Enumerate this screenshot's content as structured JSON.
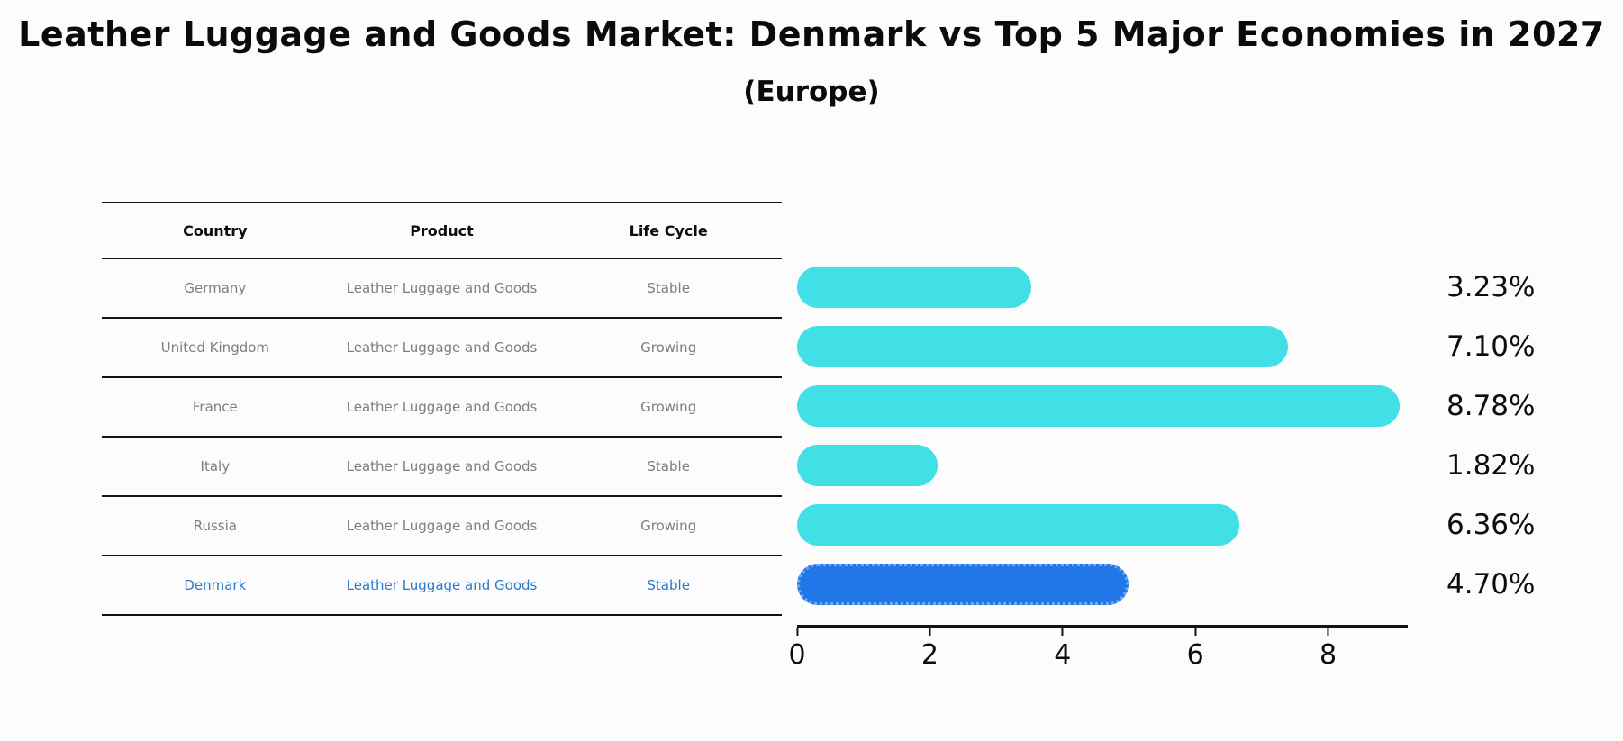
{
  "title": "Leather Luggage and Goods Market: Denmark vs Top 5 Major Economies in 2027",
  "subtitle": "(Europe)",
  "table": {
    "headers": [
      "Country",
      "Product",
      "Life Cycle"
    ],
    "rows": [
      {
        "country": "Germany",
        "product": "Leather Luggage and Goods",
        "life_cycle": "Stable",
        "highlight": false
      },
      {
        "country": "United Kingdom",
        "product": "Leather Luggage and Goods",
        "life_cycle": "Growing",
        "highlight": false
      },
      {
        "country": "France",
        "product": "Leather Luggage and Goods",
        "life_cycle": "Growing",
        "highlight": false
      },
      {
        "country": "Italy",
        "product": "Leather Luggage and Goods",
        "life_cycle": "Stable",
        "highlight": false
      },
      {
        "country": "Russia",
        "product": "Leather Luggage and Goods",
        "life_cycle": "Growing",
        "highlight": false
      },
      {
        "country": "Denmark",
        "product": "Leather Luggage and Goods",
        "life_cycle": "Stable",
        "highlight": true
      }
    ]
  },
  "chart_data": {
    "type": "bar",
    "orientation": "horizontal",
    "title": "Leather Luggage and Goods Market: Denmark vs Top 5 Major Economies in 2027 (Europe)",
    "categories": [
      "Germany",
      "United Kingdom",
      "France",
      "Italy",
      "Russia",
      "Denmark"
    ],
    "values": [
      3.23,
      7.1,
      8.78,
      1.82,
      6.36,
      4.7
    ],
    "value_labels": [
      "3.23%",
      "7.10%",
      "8.78%",
      "1.82%",
      "6.36%",
      "4.70%"
    ],
    "xlim": [
      0,
      9.2
    ],
    "x_ticks": [
      0,
      2,
      4,
      6,
      8
    ],
    "grid": false,
    "legend": "none",
    "bar_color": "#40E0E6",
    "highlight_color": "#2277E8",
    "highlight_border": "#6EA8F0",
    "highlight_index": 5
  },
  "colors": {
    "background": "#fcfcfd",
    "bar_cyan": "#40E0E6",
    "bar_blue": "#2277E8",
    "highlight_text": "#2979cf",
    "row_text": "#7e7e7e",
    "heading_text": "#0b0b0b",
    "axis_line": "#141414"
  }
}
